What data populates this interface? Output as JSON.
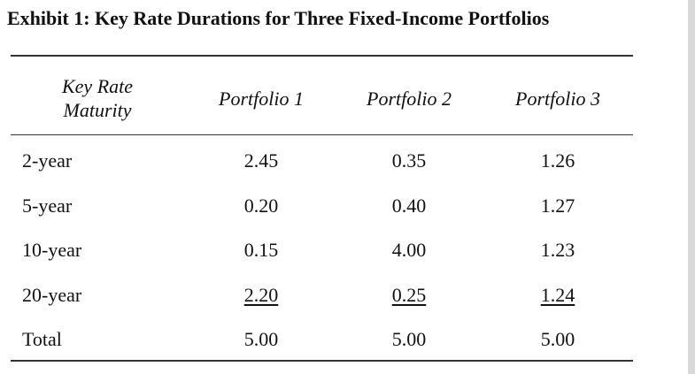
{
  "title": "Exhibit 1: Key Rate Durations for Three Fixed-Income Portfolios",
  "table": {
    "headers": [
      "Key Rate Maturity",
      "Portfolio 1",
      "Portfolio 2",
      "Portfolio 3"
    ],
    "rows": [
      [
        "2-year",
        "2.45",
        "0.35",
        "1.26"
      ],
      [
        "5-year",
        "0.20",
        "0.40",
        "1.27"
      ],
      [
        "10-year",
        "0.15",
        "4.00",
        "1.23"
      ],
      [
        "20-year",
        "2.20",
        "0.25",
        "1.24"
      ],
      [
        "Total",
        "5.00",
        "5.00",
        "5.00"
      ]
    ]
  }
}
